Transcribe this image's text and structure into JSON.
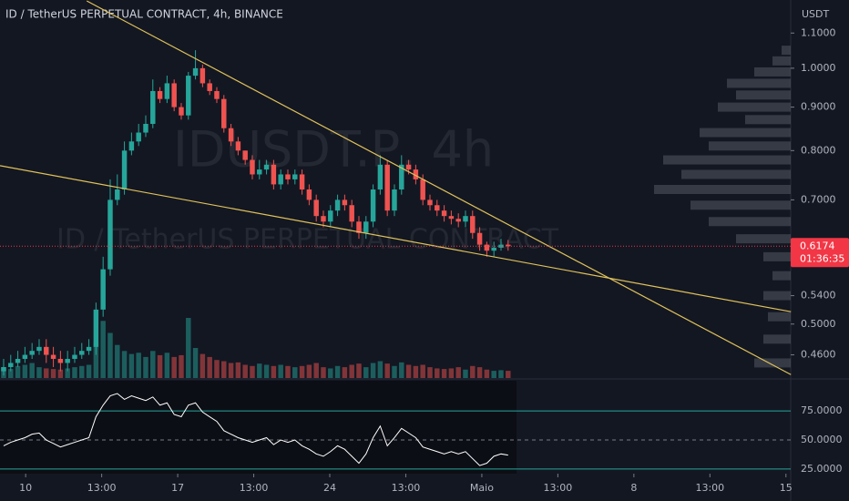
{
  "chart_data": {
    "type": "candlestick",
    "title": "ID / TetherUS PERPETUAL CONTRACT, 4h, BINANCE",
    "watermark": [
      "IDUSDT.P, 4h",
      "ID / TetherUS PERPETUAL CONTRACT"
    ],
    "y_unit": "USDT",
    "log": true,
    "ylim": [
      0.432,
      1.203
    ],
    "yticks": [
      {
        "value": 1.1,
        "label": "1.1000"
      },
      {
        "value": 1.0,
        "label": "1.0000"
      },
      {
        "value": 0.9,
        "label": "0.9000"
      },
      {
        "value": 0.8,
        "label": "0.8000"
      },
      {
        "value": 0.7,
        "label": "0.7000"
      },
      {
        "value": 0.54,
        "label": "0.5400"
      },
      {
        "value": 0.5,
        "label": "0.5000"
      },
      {
        "value": 0.46,
        "label": "0.4600"
      }
    ],
    "xlim": [
      -0.51,
      110.77
    ],
    "xticks": [
      {
        "value": 3.1,
        "label": "10"
      },
      {
        "value": 13.8,
        "label": "13:00"
      },
      {
        "value": 24.5,
        "label": "17"
      },
      {
        "value": 35.2,
        "label": "13:00"
      },
      {
        "value": 45.9,
        "label": "24"
      },
      {
        "value": 56.6,
        "label": "13:00"
      },
      {
        "value": 67.3,
        "label": "Maio"
      },
      {
        "value": 78.0,
        "label": "13:00"
      },
      {
        "value": 88.7,
        "label": "8"
      },
      {
        "value": 99.4,
        "label": "13:00"
      },
      {
        "value": 110.1,
        "label": "15"
      }
    ],
    "up_color": "#26a69a",
    "down_color": "#ef5350",
    "open": [
      0.44,
      0.445,
      0.45,
      0.455,
      0.46,
      0.465,
      0.47,
      0.46,
      0.455,
      0.45,
      0.455,
      0.46,
      0.465,
      0.47,
      0.52,
      0.58,
      0.7,
      0.72,
      0.8,
      0.82,
      0.84,
      0.86,
      0.94,
      0.92,
      0.96,
      0.9,
      0.88,
      0.98,
      1.0,
      0.96,
      0.94,
      0.92,
      0.85,
      0.82,
      0.8,
      0.78,
      0.75,
      0.76,
      0.77,
      0.73,
      0.75,
      0.74,
      0.75,
      0.72,
      0.7,
      0.67,
      0.66,
      0.68,
      0.7,
      0.69,
      0.66,
      0.64,
      0.66,
      0.72,
      0.77,
      0.68,
      0.72,
      0.77,
      0.76,
      0.74,
      0.7,
      0.69,
      0.68,
      0.67,
      0.665,
      0.66,
      0.67,
      0.64,
      0.62,
      0.61,
      0.615,
      0.62
    ],
    "high": [
      0.455,
      0.46,
      0.465,
      0.47,
      0.475,
      0.48,
      0.48,
      0.47,
      0.465,
      0.465,
      0.47,
      0.475,
      0.48,
      0.53,
      0.6,
      0.74,
      0.75,
      0.82,
      0.84,
      0.86,
      0.88,
      0.97,
      0.95,
      0.98,
      0.97,
      0.91,
      0.99,
      1.05,
      1.01,
      0.97,
      0.95,
      0.93,
      0.86,
      0.83,
      0.8,
      0.79,
      0.78,
      0.78,
      0.78,
      0.76,
      0.76,
      0.76,
      0.76,
      0.73,
      0.71,
      0.68,
      0.69,
      0.71,
      0.71,
      0.7,
      0.67,
      0.67,
      0.73,
      0.79,
      0.78,
      0.73,
      0.79,
      0.78,
      0.77,
      0.75,
      0.71,
      0.7,
      0.69,
      0.68,
      0.675,
      0.68,
      0.68,
      0.65,
      0.625,
      0.625,
      0.63,
      0.628
    ],
    "low": [
      0.435,
      0.44,
      0.445,
      0.45,
      0.455,
      0.46,
      0.45,
      0.445,
      0.44,
      0.44,
      0.45,
      0.455,
      0.46,
      0.46,
      0.51,
      0.57,
      0.69,
      0.71,
      0.79,
      0.81,
      0.83,
      0.85,
      0.91,
      0.91,
      0.89,
      0.87,
      0.87,
      0.97,
      0.95,
      0.93,
      0.91,
      0.84,
      0.81,
      0.79,
      0.77,
      0.74,
      0.74,
      0.75,
      0.72,
      0.72,
      0.73,
      0.73,
      0.71,
      0.69,
      0.66,
      0.65,
      0.65,
      0.67,
      0.68,
      0.65,
      0.63,
      0.63,
      0.65,
      0.71,
      0.67,
      0.67,
      0.71,
      0.75,
      0.73,
      0.69,
      0.68,
      0.67,
      0.66,
      0.655,
      0.65,
      0.65,
      0.63,
      0.61,
      0.6,
      0.6,
      0.61,
      0.61
    ],
    "close": [
      0.445,
      0.45,
      0.455,
      0.46,
      0.465,
      0.47,
      0.46,
      0.455,
      0.45,
      0.455,
      0.46,
      0.465,
      0.47,
      0.52,
      0.58,
      0.7,
      0.72,
      0.8,
      0.82,
      0.84,
      0.86,
      0.94,
      0.92,
      0.96,
      0.9,
      0.88,
      0.98,
      1.0,
      0.96,
      0.94,
      0.92,
      0.85,
      0.82,
      0.8,
      0.78,
      0.75,
      0.76,
      0.77,
      0.73,
      0.75,
      0.74,
      0.75,
      0.72,
      0.7,
      0.67,
      0.66,
      0.68,
      0.7,
      0.69,
      0.66,
      0.64,
      0.66,
      0.72,
      0.77,
      0.68,
      0.72,
      0.77,
      0.76,
      0.74,
      0.7,
      0.69,
      0.68,
      0.67,
      0.665,
      0.66,
      0.67,
      0.64,
      0.62,
      0.61,
      0.615,
      0.62,
      0.6174
    ],
    "volume": {
      "ylim": [
        0,
        250
      ],
      "values": [
        18,
        15,
        20,
        22,
        25,
        18,
        16,
        15,
        14,
        16,
        18,
        20,
        22,
        60,
        95,
        75,
        55,
        45,
        40,
        42,
        35,
        45,
        38,
        42,
        35,
        38,
        100,
        50,
        40,
        35,
        30,
        28,
        25,
        26,
        22,
        20,
        24,
        22,
        20,
        22,
        20,
        18,
        20,
        22,
        25,
        18,
        16,
        20,
        18,
        22,
        24,
        18,
        25,
        28,
        24,
        20,
        26,
        22,
        20,
        22,
        18,
        16,
        15,
        16,
        18,
        14,
        20,
        18,
        14,
        12,
        13,
        12
      ]
    },
    "volume_profile": {
      "color": "#787b86",
      "prices": [
        1.05,
        1.02,
        0.99,
        0.96,
        0.93,
        0.9,
        0.87,
        0.84,
        0.81,
        0.78,
        0.75,
        0.72,
        0.69,
        0.66,
        0.63,
        0.6,
        0.57,
        0.54,
        0.51,
        0.48,
        0.45
      ],
      "values": [
        10,
        20,
        40,
        70,
        60,
        80,
        50,
        100,
        90,
        140,
        120,
        150,
        110,
        90,
        60,
        30,
        20,
        30,
        25,
        30,
        40
      ]
    },
    "trendlines": {
      "color": "#e0c25a",
      "lines": [
        [
          [
            11.7,
            1.2
          ],
          [
            110.8,
            0.436
          ]
        ],
        [
          [
            -0.51,
            0.768
          ],
          [
            110.8,
            0.517
          ]
        ]
      ]
    },
    "last_price": {
      "value": 0.6174,
      "label": "0.6174",
      "countdown": "01:36:35",
      "color": "#f23645"
    },
    "rsi": {
      "color": "#ffffff",
      "band_color": "#26a69a",
      "ylim": [
        21,
        101
      ],
      "yticks": [
        {
          "value": 75,
          "label": "75.0000"
        },
        {
          "value": 50,
          "label": "50.0000"
        },
        {
          "value": 25,
          "label": "25.0000"
        }
      ],
      "values": [
        45,
        48,
        50,
        52,
        55,
        56,
        50,
        47,
        44,
        46,
        48,
        50,
        52,
        70,
        80,
        88,
        90,
        85,
        88,
        86,
        84,
        87,
        80,
        82,
        72,
        70,
        80,
        82,
        74,
        70,
        66,
        58,
        55,
        52,
        50,
        48,
        50,
        52,
        46,
        50,
        48,
        50,
        45,
        42,
        38,
        36,
        40,
        45,
        42,
        36,
        30,
        38,
        52,
        62,
        45,
        52,
        60,
        56,
        52,
        44,
        42,
        40,
        38,
        40,
        38,
        40,
        34,
        28,
        30,
        36,
        38,
        37
      ]
    }
  }
}
